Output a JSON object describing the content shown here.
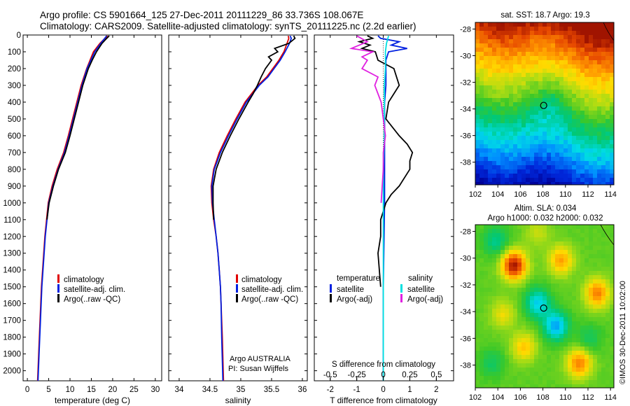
{
  "header": {
    "line1": "Argo profile: CS 5901664_125 27-Dec-2011 20111229_86 33.736S 108.067E",
    "line2": "Climatology: CARS2009. Satellite-adjusted climatology: synTS_20111225.nc (2.2d earlier)"
  },
  "side_text": "©IMOS 30-Dec-2011 10:02:00",
  "colors": {
    "climatology": "#e00000",
    "satellite": "#0020e0",
    "argo": "#000000",
    "sat_salinity": "#00e0e0",
    "argo_salinity": "#e020e0"
  },
  "chart_data": [
    {
      "type": "line",
      "id": "temperature",
      "xlabel": "temperature (deg C)",
      "xlim": [
        -1,
        31.5
      ],
      "ylim": [
        2060,
        0
      ],
      "xticks": [
        0,
        5,
        10,
        15,
        20,
        25,
        30
      ],
      "xtick_labels": [
        "0",
        "5",
        "10",
        "15",
        "20",
        "25",
        "30"
      ],
      "yticks": [
        0,
        100,
        200,
        300,
        400,
        500,
        600,
        700,
        800,
        900,
        1000,
        1100,
        1200,
        1300,
        1400,
        1500,
        1600,
        1700,
        1800,
        1900,
        2000
      ],
      "ytick_labels": [
        "0",
        "100",
        "200",
        "300",
        "400",
        "500",
        "600",
        "700",
        "800",
        "900",
        "1000",
        "1100",
        "1200",
        "1300",
        "1400",
        "1500",
        "1600",
        "1700",
        "1800",
        "1900",
        "2000"
      ],
      "legend": [
        "climatology",
        "satellite-adj. clim.",
        "Argo(..raw -QC)"
      ],
      "series": [
        {
          "name": "climatology",
          "color": "#e00000",
          "depth": [
            5,
            50,
            100,
            200,
            300,
            400,
            500,
            600,
            700,
            800,
            900,
            1000,
            1200,
            1500,
            1800,
            2060
          ],
          "values": [
            18.8,
            17.0,
            15.5,
            13.9,
            12.6,
            11.6,
            10.6,
            9.6,
            8.5,
            7.0,
            5.8,
            4.9,
            4.1,
            3.3,
            2.8,
            2.4
          ]
        },
        {
          "name": "satellite-adj. clim.",
          "color": "#0020e0",
          "depth": [
            5,
            50,
            100,
            200,
            300,
            400,
            500,
            600,
            700,
            800,
            900,
            1000,
            1200,
            1500,
            1800,
            2060
          ],
          "values": [
            18.6,
            17.2,
            15.8,
            14.0,
            12.8,
            11.8,
            10.8,
            9.8,
            8.7,
            7.2,
            6.0,
            5.0,
            4.2,
            3.4,
            2.9,
            2.5
          ]
        },
        {
          "name": "Argo(..raw -QC)",
          "color": "#000000",
          "depth": [
            5,
            20,
            50,
            100,
            150,
            200,
            300,
            400,
            500,
            600,
            700,
            800,
            900,
            1000,
            1100
          ],
          "values": [
            19.2,
            18.6,
            17.5,
            16.2,
            15.2,
            14.3,
            13.0,
            12.0,
            11.0,
            10.0,
            8.9,
            7.3,
            6.1,
            5.1,
            4.6
          ]
        }
      ]
    },
    {
      "type": "line",
      "id": "salinity",
      "xlabel": "salinity",
      "xlim": [
        33.83,
        36.08
      ],
      "ylim": [
        2060,
        0
      ],
      "xticks": [
        34,
        34.5,
        35,
        35.5,
        36
      ],
      "xtick_labels": [
        "34",
        "34.5",
        "35",
        "35.5",
        "36"
      ],
      "legend": [
        "climatology",
        "satellite-adj. clim.",
        "Argo(..raw -QC)"
      ],
      "annotation": [
        "Argo AUSTRALIA",
        "PI: Susan Wijffels"
      ],
      "series": [
        {
          "name": "climatology",
          "color": "#e00000",
          "depth": [
            5,
            20,
            50,
            100,
            150,
            200,
            250,
            300,
            400,
            500,
            600,
            700,
            800,
            900,
            1000,
            1100,
            1200,
            1300,
            1400,
            1500,
            1600,
            1800,
            2060
          ],
          "values": [
            35.77,
            35.78,
            35.75,
            35.7,
            35.62,
            35.52,
            35.42,
            35.28,
            35.07,
            34.92,
            34.78,
            34.65,
            34.56,
            34.52,
            34.53,
            34.56,
            34.6,
            34.63,
            34.65,
            34.67,
            34.68,
            34.7,
            34.72
          ]
        },
        {
          "name": "satellite-adj. clim.",
          "color": "#0020e0",
          "depth": [
            5,
            20,
            50,
            100,
            150,
            200,
            250,
            300,
            400,
            500,
            600,
            700,
            800,
            900,
            1000,
            1100,
            1200,
            1300,
            1400,
            1500,
            1600,
            1800,
            2060
          ],
          "values": [
            35.8,
            35.82,
            35.79,
            35.72,
            35.64,
            35.54,
            35.44,
            35.3,
            35.09,
            34.94,
            34.8,
            34.67,
            34.57,
            34.53,
            34.54,
            34.57,
            34.6,
            34.63,
            34.65,
            34.67,
            34.68,
            34.69,
            34.71
          ]
        },
        {
          "name": "Argo(..raw -QC)",
          "color": "#000000",
          "depth": [
            5,
            20,
            50,
            80,
            100,
            130,
            150,
            200,
            250,
            300,
            350,
            400,
            500,
            600,
            700,
            800,
            900,
            1000,
            1100
          ],
          "values": [
            35.86,
            35.88,
            35.78,
            35.55,
            35.6,
            35.45,
            35.5,
            35.4,
            35.33,
            35.27,
            35.2,
            35.12,
            34.97,
            34.83,
            34.7,
            34.6,
            34.55,
            34.55,
            34.56
          ]
        }
      ]
    },
    {
      "type": "line",
      "id": "difference",
      "xlabel": "T difference from climatology",
      "xlabel_top": "S difference from climatology",
      "xlim": [
        -2.6,
        2.65
      ],
      "ylim": [
        2060,
        0
      ],
      "xticks": [
        -2,
        -1,
        0,
        1,
        2
      ],
      "xtick_labels": [
        "-2",
        "-1",
        "0",
        "1",
        "2"
      ],
      "s_ticks": [
        -0.5,
        -0.25,
        0,
        0.25,
        0.5
      ],
      "s_tick_labels": [
        "-0.5",
        "-0.25",
        "0",
        "0.25",
        "0.5"
      ],
      "legend_temperature_title": "temperature",
      "legend_salinity_title": "salinity",
      "legend_temperature": [
        "satellite",
        "Argo(-adj)"
      ],
      "legend_salinity": [
        "satellite",
        "Argo(-adj)"
      ],
      "series": [
        {
          "name": "satellite",
          "color": "#0020e0",
          "depth": [
            5,
            20,
            40,
            60,
            80,
            100,
            150,
            200,
            300,
            400,
            600,
            800,
            1000,
            1500,
            2060
          ],
          "values": [
            -0.2,
            -0.1,
            0.6,
            0.3,
            0.9,
            0.2,
            0.1,
            0.1,
            0.1,
            0.05,
            0.05,
            0.05,
            0.05,
            0.0,
            0.0
          ]
        },
        {
          "name": "Argo(-adj)",
          "color": "#000000",
          "depth": [
            5,
            20,
            40,
            60,
            80,
            100,
            150,
            200,
            300,
            400,
            500,
            600,
            650,
            700,
            750,
            800,
            850,
            900,
            950,
            1000,
            1050,
            1100,
            1200,
            1300,
            1500
          ],
          "values": [
            -0.6,
            -0.4,
            -0.9,
            -0.5,
            -0.8,
            -0.3,
            -0.2,
            0.4,
            0.6,
            0.2,
            0.1,
            0.6,
            0.9,
            1.1,
            1.0,
            1.0,
            0.8,
            0.6,
            0.3,
            0.1,
            0.0,
            -0.1,
            -0.1,
            -0.2,
            -0.1
          ]
        },
        {
          "name": "satellite (salinity)",
          "color": "#00e0e0",
          "depth": [
            5,
            50,
            100,
            200,
            300,
            400,
            600,
            800,
            1000,
            1500,
            2060
          ],
          "values": [
            0.05,
            0.03,
            0.02,
            0.02,
            0.01,
            0.01,
            0.01,
            0.0,
            0.0,
            0.0,
            0.0
          ]
        },
        {
          "name": "Argo(-adj) (salinity)",
          "color": "#e020e0",
          "depth": [
            5,
            40,
            80,
            100,
            130,
            150,
            200,
            250,
            300,
            400,
            500,
            600,
            700,
            800,
            900,
            1000
          ],
          "values": [
            -0.25,
            -0.15,
            -0.3,
            -0.1,
            -0.2,
            -0.15,
            -0.2,
            -0.05,
            -0.08,
            -0.02,
            0.0,
            0.02,
            0.0,
            0.0,
            -0.01,
            -0.02
          ]
        }
      ]
    },
    {
      "type": "heatmap",
      "id": "sst_map",
      "title": "sat. SST: 18.7 Argo: 19.3",
      "xlim": [
        102,
        114.3
      ],
      "ylim": [
        -39.7,
        -27.5
      ],
      "xticks": [
        102,
        104,
        106,
        108,
        110,
        112,
        114
      ],
      "xtick_labels": [
        "102",
        "104",
        "106",
        "108",
        "110",
        "112",
        "114"
      ],
      "yticks": [
        -28,
        -30,
        -32,
        -34,
        -36,
        -38
      ],
      "ytick_labels": [
        "-28",
        "-30",
        "-32",
        "-34",
        "-36",
        "-38"
      ],
      "marker": {
        "lon": 108.067,
        "lat": -33.736
      }
    },
    {
      "type": "heatmap",
      "id": "sla_map",
      "title_line1": "Altim. SLA: 0.034",
      "title_line2": "Argo h1000: 0.032 h2000: 0.032",
      "xlim": [
        102,
        114.3
      ],
      "ylim": [
        -39.7,
        -27.5
      ],
      "xticks": [
        102,
        104,
        106,
        108,
        110,
        112,
        114
      ],
      "xtick_labels": [
        "102",
        "104",
        "106",
        "108",
        "110",
        "112",
        "114"
      ],
      "yticks": [
        -28,
        -30,
        -32,
        -34,
        -36,
        -38
      ],
      "ytick_labels": [
        "-28",
        "-30",
        "-32",
        "-34",
        "-36",
        "-38"
      ],
      "marker": {
        "lon": 108.067,
        "lat": -33.736
      }
    }
  ]
}
